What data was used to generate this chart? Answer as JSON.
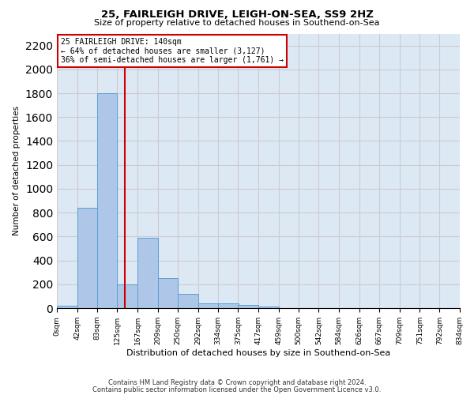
{
  "title1": "25, FAIRLEIGH DRIVE, LEIGH-ON-SEA, SS9 2HZ",
  "title2": "Size of property relative to detached houses in Southend-on-Sea",
  "xlabel": "Distribution of detached houses by size in Southend-on-Sea",
  "ylabel": "Number of detached properties",
  "bin_labels": [
    "0sqm",
    "42sqm",
    "83sqm",
    "125sqm",
    "167sqm",
    "209sqm",
    "250sqm",
    "292sqm",
    "334sqm",
    "375sqm",
    "417sqm",
    "459sqm",
    "500sqm",
    "542sqm",
    "584sqm",
    "626sqm",
    "667sqm",
    "709sqm",
    "751sqm",
    "792sqm",
    "834sqm"
  ],
  "bin_edges": [
    0,
    42,
    83,
    125,
    167,
    209,
    250,
    292,
    334,
    375,
    417,
    459,
    500,
    542,
    584,
    626,
    667,
    709,
    751,
    792,
    834
  ],
  "bar_heights": [
    20,
    840,
    1800,
    200,
    590,
    250,
    120,
    40,
    40,
    25,
    10,
    0,
    0,
    0,
    0,
    0,
    0,
    0,
    0,
    0
  ],
  "bar_color": "#aec6e8",
  "bar_edge_color": "#5a9fd4",
  "ylim": [
    0,
    2300
  ],
  "yticks": [
    0,
    200,
    400,
    600,
    800,
    1000,
    1200,
    1400,
    1600,
    1800,
    2000,
    2200
  ],
  "property_size": 140,
  "vline_color": "#cc0000",
  "annotation_text": "25 FAIRLEIGH DRIVE: 140sqm\n← 64% of detached houses are smaller (3,127)\n36% of semi-detached houses are larger (1,761) →",
  "annotation_box_color": "#ffffff",
  "annotation_box_edge": "#cc0000",
  "footer1": "Contains HM Land Registry data © Crown copyright and database right 2024.",
  "footer2": "Contains public sector information licensed under the Open Government Licence v3.0.",
  "grid_color": "#cccccc",
  "background_color": "#dde8f5"
}
